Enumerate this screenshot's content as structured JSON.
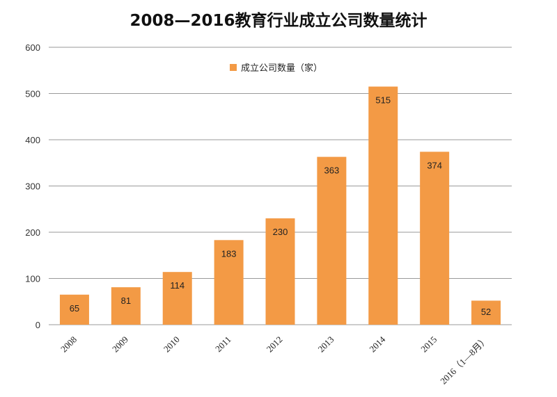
{
  "chart_data": {
    "type": "bar",
    "title": "2008—2016教育行业成立公司数量统计",
    "categories": [
      "2008",
      "2009",
      "2010",
      "2011",
      "2012",
      "2013",
      "2014",
      "2015",
      "2016（1—8月）"
    ],
    "series": [
      {
        "name": "成立公司数量（家）",
        "values": [
          65,
          81,
          114,
          183,
          230,
          363,
          515,
          374,
          52
        ]
      }
    ],
    "ylim": [
      0,
      600
    ],
    "yticks": [
      0,
      100,
      200,
      300,
      400,
      500,
      600
    ],
    "grid": true,
    "legend_position": "top-center",
    "bar_color": "#F39A45",
    "grid_color": "#9a9a9a"
  }
}
